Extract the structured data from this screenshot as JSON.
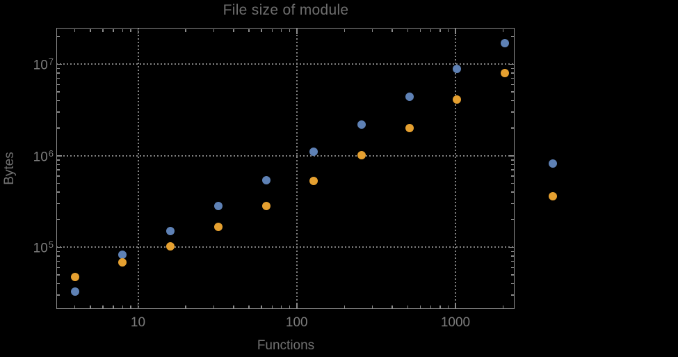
{
  "chart_data": {
    "type": "scatter",
    "title": "File size of module",
    "xlabel": "Functions",
    "ylabel": "Bytes",
    "x_scale": "log",
    "y_scale": "log",
    "grid": "dotted gridlines at decade ticks, both axes",
    "legend_position": "none",
    "background_color": "#000000",
    "frame_color": "#8b8b8b",
    "text_color": "#7c7c7c",
    "xlim_approx": [
      3.05,
      2360
    ],
    "ylim_approx": [
      21000,
      25000000
    ],
    "x_ticks": [
      {
        "value": 10,
        "label": "10"
      },
      {
        "value": 100,
        "label": "100"
      },
      {
        "value": 1000,
        "label": "1000"
      }
    ],
    "y_ticks": [
      {
        "value": 100000,
        "base": "10",
        "exp": "5"
      },
      {
        "value": 1000000,
        "base": "10",
        "exp": "6"
      },
      {
        "value": 10000000,
        "base": "10",
        "exp": "7"
      }
    ],
    "series": [
      {
        "name": "series-1-blue",
        "color": "#5E81B5",
        "points": [
          [
            4,
            33000
          ],
          [
            8,
            83000
          ],
          [
            16,
            150000
          ],
          [
            32,
            280000
          ],
          [
            64,
            540000
          ],
          [
            128,
            1100000
          ],
          [
            256,
            2200000
          ],
          [
            512,
            4400000
          ],
          [
            1024,
            8900000
          ],
          [
            2048,
            17000000
          ],
          [
            4096,
            820000
          ]
        ]
      },
      {
        "name": "series-2-orange",
        "color": "#E5A030",
        "points": [
          [
            4,
            47000
          ],
          [
            8,
            68000
          ],
          [
            16,
            102000
          ],
          [
            32,
            166000
          ],
          [
            64,
            282000
          ],
          [
            128,
            530000
          ],
          [
            256,
            1020000
          ],
          [
            512,
            2000000
          ],
          [
            1024,
            4100000
          ],
          [
            2048,
            8000000
          ],
          [
            4096,
            360000
          ]
        ]
      }
    ]
  }
}
